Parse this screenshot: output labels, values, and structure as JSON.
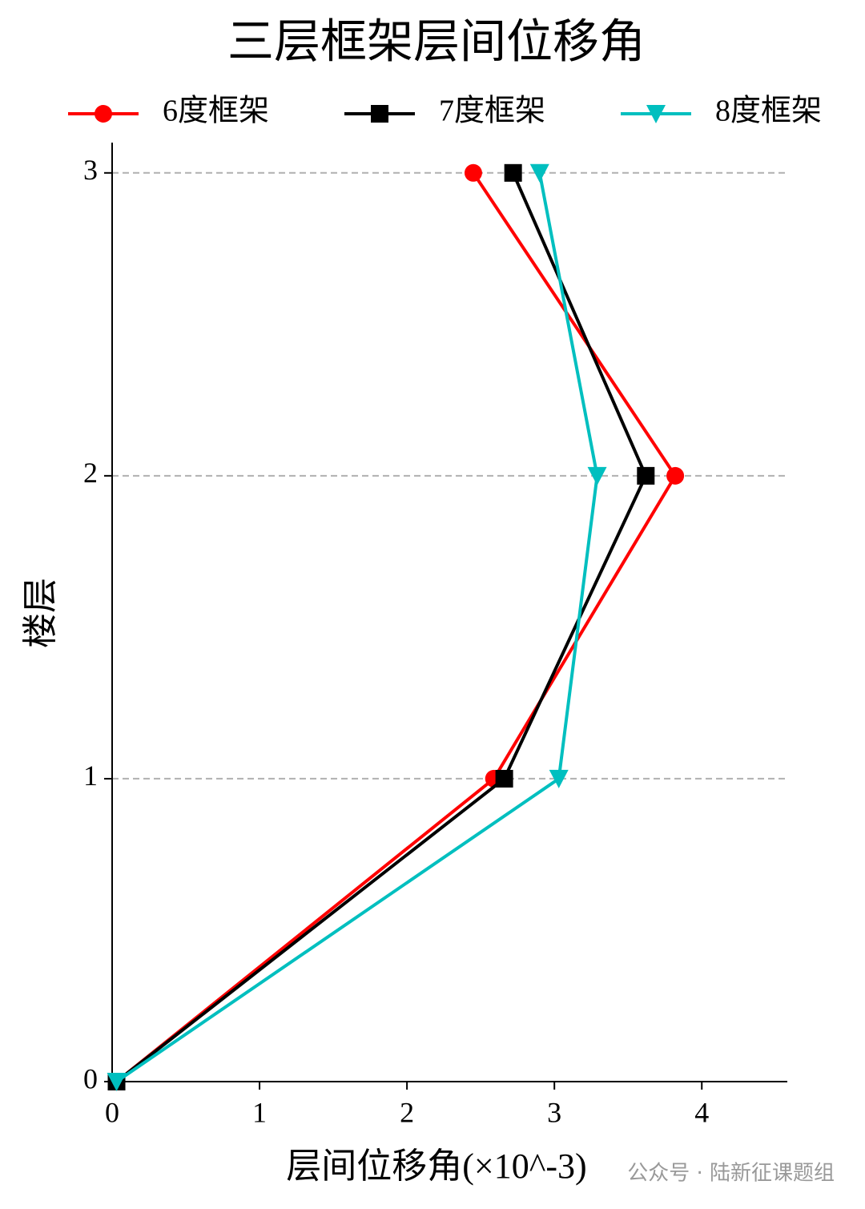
{
  "chart_data": {
    "type": "line",
    "title": "三层框架层间位移角",
    "xlabel": "层间位移角(×10^-3)",
    "ylabel": "楼层",
    "y": [
      0,
      1,
      2,
      3
    ],
    "series": [
      {
        "name": "6度框架",
        "color": "#ff0000",
        "marker": "circle",
        "values": [
          0.03,
          2.59,
          3.82,
          2.45
        ]
      },
      {
        "name": "7度框架",
        "color": "#000000",
        "marker": "square",
        "values": [
          0.03,
          2.66,
          3.62,
          2.72
        ]
      },
      {
        "name": "8度框架",
        "color": "#00bfbf",
        "marker": "triangle-down",
        "values": [
          0.03,
          3.03,
          3.29,
          2.9
        ]
      }
    ],
    "xlim": [
      0,
      4.58
    ],
    "xticks": [
      0,
      1,
      2,
      3,
      4
    ],
    "ylim": [
      0,
      3.1
    ],
    "yticks": [
      0,
      1,
      2,
      3
    ],
    "grid": true,
    "legend": "top",
    "watermark": "公众号 · 陆新征课题组"
  }
}
